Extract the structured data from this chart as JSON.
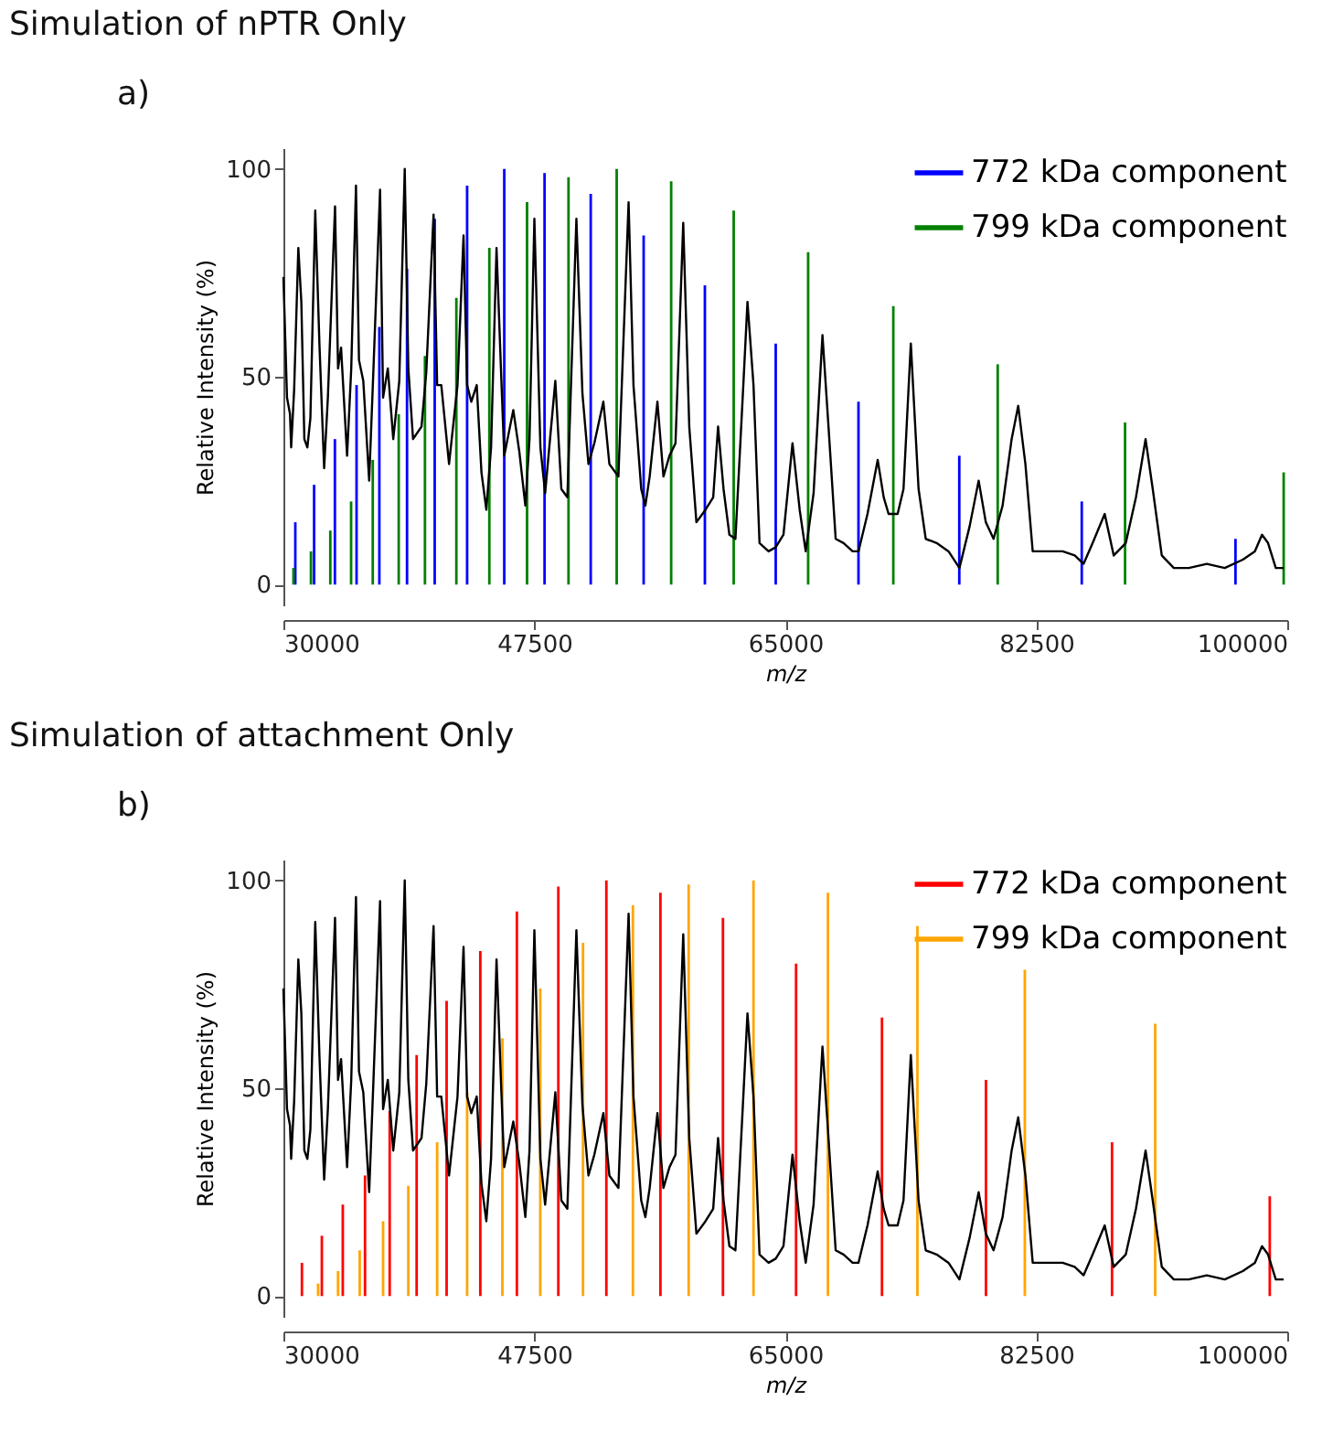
{
  "chart_data": [
    {
      "type": "line",
      "title": "Simulation  of nPTR Only",
      "annotations": [
        "a)"
      ],
      "xlabel": "m/z",
      "ylabel": "Relative Intensity (%)",
      "xlim": [
        30000,
        100000
      ],
      "xticks": [
        30000,
        47500,
        65000,
        82500,
        100000
      ],
      "ylim": [
        -5,
        105
      ],
      "yticks": [
        0,
        50,
        100
      ],
      "legend": "top right",
      "series": [
        {
          "name": "772 kDa component",
          "type": "bar",
          "color": "#0000ff",
          "x": [
            30830,
            32140,
            33590,
            35100,
            36690,
            38620,
            40550,
            42810,
            45400,
            48210,
            51430,
            55120,
            59390,
            64330,
            70100,
            77130,
            85670,
            96390
          ],
          "values": [
            15,
            24,
            35,
            48,
            62,
            76,
            88,
            96,
            100,
            99,
            94,
            84,
            72,
            58,
            44,
            31,
            20,
            11
          ]
        },
        {
          "name": "799 kDa component",
          "type": "bar",
          "color": "#008000",
          "x": [
            30700,
            31920,
            33270,
            34720,
            36230,
            38040,
            39870,
            42060,
            44360,
            46990,
            49880,
            53240,
            57040,
            61400,
            66590,
            72530,
            79810,
            88690,
            99750
          ],
          "values": [
            4,
            8,
            13,
            20,
            30,
            41,
            55,
            69,
            81,
            92,
            98,
            100,
            97,
            90,
            80,
            67,
            53,
            39,
            27
          ]
        },
        {
          "color": "#000000",
          "x": [
            30000,
            30250,
            30460,
            30540,
            30750,
            31040,
            31250,
            31460,
            31670,
            31880,
            32220,
            32510,
            32840,
            33100,
            33600,
            33810,
            34020,
            34440,
            34730,
            35060,
            35270,
            35570,
            35980,
            36280,
            36740,
            36950,
            37280,
            37660,
            38080,
            38460,
            38710,
            39040,
            39630,
            39960,
            40470,
            40720,
            41010,
            41550,
            42140,
            42560,
            42810,
            43100,
            43480,
            43810,
            44150,
            44480,
            44860,
            45200,
            45400,
            46030,
            46450,
            46870,
            47160,
            47500,
            47920,
            48250,
            48960,
            49380,
            49800,
            50430,
            50850,
            51270,
            51680,
            52310,
            52730,
            53360,
            54070,
            54410,
            54950,
            55240,
            55540,
            56080,
            56500,
            56920,
            57340,
            57880,
            58300,
            58800,
            59430,
            59970,
            60310,
            60690,
            61100,
            61520,
            62070,
            62360,
            62780,
            63200,
            63830,
            64330,
            64870,
            65500,
            66000,
            66420,
            66970,
            67590,
            68010,
            68510,
            69060,
            69690,
            70100,
            70730,
            71440,
            71860,
            72200,
            72830,
            73240,
            73750,
            74290,
            74790,
            75550,
            76380,
            77140,
            77850,
            78480,
            78980,
            79520,
            80150,
            80780,
            81240,
            81740,
            82250,
            83500,
            84340,
            85180,
            85800,
            86430,
            87270,
            87900,
            88740,
            89450,
            90120,
            90620,
            91250,
            92090,
            93130,
            94390,
            95640,
            96900,
            97740,
            98240,
            98660,
            99200,
            99750
          ],
          "values": [
            74,
            45,
            41,
            33,
            47,
            81,
            68,
            35,
            33,
            40,
            90,
            58,
            28,
            45,
            91,
            52,
            57,
            31,
            52,
            96,
            54,
            49,
            25,
            52,
            95,
            45,
            52,
            35,
            49,
            100,
            52,
            35,
            38,
            51,
            89,
            48,
            48,
            29,
            48,
            84,
            48,
            44,
            48,
            27,
            18,
            33,
            81,
            49,
            31,
            42,
            32,
            19,
            35,
            88,
            33,
            22,
            49,
            23,
            21,
            88,
            46,
            29,
            34,
            44,
            29,
            26,
            92,
            48,
            23,
            19,
            26,
            44,
            26,
            31,
            34,
            87,
            38,
            15,
            18,
            21,
            38,
            23,
            12,
            11,
            48,
            68,
            48,
            10,
            8,
            9,
            12,
            34,
            18,
            8,
            22,
            60,
            38,
            11,
            10,
            8,
            8,
            17,
            30,
            21,
            17,
            17,
            23,
            58,
            23,
            11,
            10,
            8,
            4,
            14,
            25,
            15,
            11,
            19,
            35,
            43,
            29,
            8,
            8,
            8,
            7,
            5,
            10,
            17,
            7,
            10,
            21,
            35,
            23,
            7,
            4,
            4,
            5,
            4,
            6,
            8,
            12,
            10,
            4,
            4
          ]
        }
      ]
    },
    {
      "type": "line",
      "title": "Simulation  of attachment Only",
      "annotations": [
        "b)"
      ],
      "xlabel": "m/z",
      "ylabel": "Relative Intensity (%)",
      "xlim": [
        30000,
        100000
      ],
      "xticks": [
        30000,
        47500,
        65000,
        82500,
        100000
      ],
      "ylim": [
        -5,
        105
      ],
      "yticks": [
        0,
        50,
        100
      ],
      "legend": "top right",
      "series": [
        {
          "name": "772 kDa component",
          "type": "bar",
          "color": "#ff0000",
          "x": [
            31290,
            32680,
            34140,
            35690,
            37410,
            39290,
            41380,
            43730,
            46280,
            49170,
            52520,
            56290,
            60650,
            65750,
            71740,
            78990,
            87780,
            98780
          ],
          "values": [
            8,
            14.5,
            22,
            29,
            44.5,
            58,
            71,
            83,
            92.5,
            98.5,
            100,
            97,
            91,
            80,
            67,
            52,
            37,
            24
          ]
        },
        {
          "name": "799 kDa component",
          "type": "bar",
          "color": "#ffa500",
          "x": [
            32420,
            33810,
            35320,
            36950,
            38710,
            40720,
            42810,
            45270,
            47910,
            50890,
            54370,
            58260,
            62780,
            67970,
            74210,
            81700,
            90790
          ],
          "values": [
            3,
            6,
            11,
            18,
            26.5,
            37,
            49,
            62,
            74,
            85,
            94,
            99,
            100,
            97,
            89,
            78.5,
            65.5
          ]
        },
        {
          "color": "#000000",
          "x": [
            30000,
            30250,
            30460,
            30540,
            30750,
            31040,
            31250,
            31460,
            31670,
            31880,
            32220,
            32510,
            32840,
            33100,
            33600,
            33810,
            34020,
            34440,
            34730,
            35060,
            35270,
            35570,
            35980,
            36280,
            36740,
            36950,
            37280,
            37660,
            38080,
            38460,
            38710,
            39040,
            39630,
            39960,
            40470,
            40720,
            41010,
            41550,
            42140,
            42560,
            42810,
            43100,
            43480,
            43810,
            44150,
            44480,
            44860,
            45200,
            45400,
            46030,
            46450,
            46870,
            47160,
            47500,
            47920,
            48250,
            48960,
            49380,
            49800,
            50430,
            50850,
            51270,
            51680,
            52310,
            52730,
            53360,
            54070,
            54410,
            54950,
            55240,
            55540,
            56080,
            56500,
            56920,
            57340,
            57880,
            58300,
            58800,
            59430,
            59970,
            60310,
            60690,
            61100,
            61520,
            62070,
            62360,
            62780,
            63200,
            63830,
            64330,
            64870,
            65500,
            66000,
            66420,
            66970,
            67590,
            68010,
            68510,
            69060,
            69690,
            70100,
            70730,
            71440,
            71860,
            72200,
            72830,
            73240,
            73750,
            74290,
            74790,
            75550,
            76380,
            77140,
            77850,
            78480,
            78980,
            79520,
            80150,
            80780,
            81240,
            81740,
            82250,
            83500,
            84340,
            85180,
            85800,
            86430,
            87270,
            87900,
            88740,
            89450,
            90120,
            90620,
            91250,
            92090,
            93130,
            94390,
            95640,
            96900,
            97740,
            98240,
            98660,
            99200,
            99750
          ],
          "values": [
            74,
            45,
            41,
            33,
            47,
            81,
            68,
            35,
            33,
            40,
            90,
            58,
            28,
            45,
            91,
            52,
            57,
            31,
            52,
            96,
            54,
            49,
            25,
            52,
            95,
            45,
            52,
            35,
            49,
            100,
            52,
            35,
            38,
            51,
            89,
            48,
            48,
            29,
            48,
            84,
            48,
            44,
            48,
            27,
            18,
            33,
            81,
            49,
            31,
            42,
            32,
            19,
            35,
            88,
            33,
            22,
            49,
            23,
            21,
            88,
            46,
            29,
            34,
            44,
            29,
            26,
            92,
            48,
            23,
            19,
            26,
            44,
            26,
            31,
            34,
            87,
            38,
            15,
            18,
            21,
            38,
            23,
            12,
            11,
            48,
            68,
            48,
            10,
            8,
            9,
            12,
            34,
            18,
            8,
            22,
            60,
            38,
            11,
            10,
            8,
            8,
            17,
            30,
            21,
            17,
            17,
            23,
            58,
            23,
            11,
            10,
            8,
            4,
            14,
            25,
            15,
            11,
            19,
            35,
            43,
            29,
            8,
            8,
            8,
            7,
            5,
            10,
            17,
            7,
            10,
            21,
            35,
            23,
            7,
            4,
            4,
            5,
            4,
            6,
            8,
            12,
            10,
            4,
            4
          ]
        }
      ]
    }
  ]
}
